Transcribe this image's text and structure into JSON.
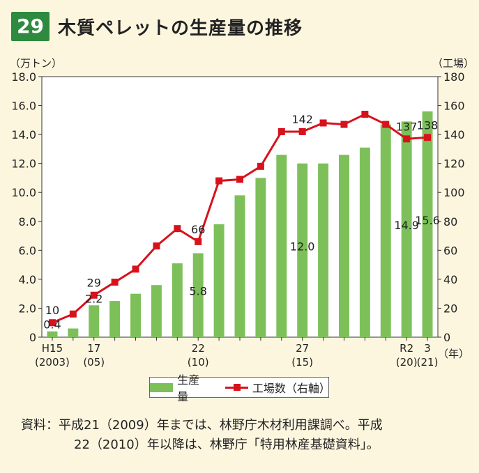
{
  "figure": {
    "number": "29",
    "title": "木質ペレットの生産量の推移"
  },
  "chart_data": {
    "type": "bar+line",
    "left_axis_unit": "（万トン）",
    "right_axis_unit": "（工場）",
    "x_unit": "（年）",
    "ylim_left": [
      0,
      18
    ],
    "ylim_right": [
      0,
      180
    ],
    "left_ticks": [
      "0",
      "2.0",
      "4.0",
      "6.0",
      "8.0",
      "10.0",
      "12.0",
      "14.0",
      "16.0",
      "18.0"
    ],
    "right_ticks": [
      "0",
      "20",
      "40",
      "60",
      "80",
      "100",
      "120",
      "140",
      "160",
      "180"
    ],
    "x_years": [
      2003,
      2004,
      2005,
      2006,
      2007,
      2008,
      2009,
      2010,
      2011,
      2012,
      2013,
      2014,
      2015,
      2016,
      2017,
      2018,
      2019,
      2020,
      2021
    ],
    "x_tick_labels": [
      {
        "index": 0,
        "line1": "H15",
        "line2": "(2003)"
      },
      {
        "index": 2,
        "line1": "17",
        "line2": "(05)"
      },
      {
        "index": 7,
        "line1": "22",
        "line2": "(10)"
      },
      {
        "index": 12,
        "line1": "27",
        "line2": "(15)"
      },
      {
        "index": 17,
        "line1": "R2",
        "line2": "(20)"
      },
      {
        "index": 18,
        "line1": "3",
        "line2": "(21)"
      }
    ],
    "series": [
      {
        "name": "生産量",
        "type": "bar",
        "axis": "left",
        "color": "#7dc05a",
        "values": [
          0.4,
          0.6,
          2.2,
          2.5,
          3.0,
          3.6,
          5.1,
          5.8,
          7.8,
          9.8,
          11.0,
          12.6,
          12.0,
          12.0,
          12.6,
          13.1,
          14.7,
          14.9,
          15.6
        ]
      },
      {
        "name": "工場数（右軸）",
        "type": "line",
        "axis": "right",
        "color": "#d8121c",
        "values": [
          10,
          16,
          29,
          38,
          47,
          63,
          75,
          66,
          108,
          109,
          118,
          142,
          142,
          148,
          147,
          154,
          147,
          137,
          138
        ]
      }
    ],
    "bar_labels": [
      {
        "index": 0,
        "text": "0.4"
      },
      {
        "index": 2,
        "text": "2.2"
      },
      {
        "index": 7,
        "text": "5.8"
      },
      {
        "index": 12,
        "text": "12.0"
      },
      {
        "index": 17,
        "text": "14.9"
      },
      {
        "index": 18,
        "text": "15.6"
      }
    ],
    "line_labels": [
      {
        "index": 0,
        "text": "10"
      },
      {
        "index": 2,
        "text": "29"
      },
      {
        "index": 7,
        "text": "66"
      },
      {
        "index": 12,
        "text": "142"
      },
      {
        "index": 17,
        "text": "137"
      },
      {
        "index": 18,
        "text": "138"
      }
    ]
  },
  "legend": {
    "bar": "生産量",
    "line": "工場数（右軸）"
  },
  "source": {
    "line1": "資料：平成21（2009）年までは、林野庁木材利用課調べ。平成",
    "line2": "22（2010）年以降は、林野庁「特用林産基礎資料」。"
  }
}
